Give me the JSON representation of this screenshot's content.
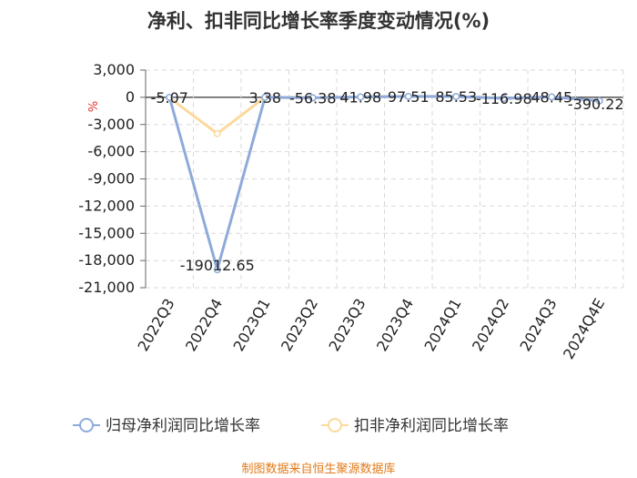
{
  "chart_data": {
    "type": "line",
    "title": "净利、扣非同比增长率季度变动情况(%)",
    "ylabel": "%",
    "x": [
      "2022Q3",
      "2022Q4",
      "2023Q1",
      "2023Q2",
      "2023Q3",
      "2023Q4",
      "2024Q1",
      "2024Q2",
      "2024Q3",
      "2024Q4E"
    ],
    "ylim": [
      -21000,
      3000
    ],
    "yticks": [
      3000,
      0,
      -3000,
      -6000,
      -9000,
      -12000,
      -15000,
      -18000,
      -21000
    ],
    "ytick_labels": [
      "3,000",
      "0",
      "-3,000",
      "-6,000",
      "-9,000",
      "-12,000",
      "-15,000",
      "-18,000",
      "-21,000"
    ],
    "series": [
      {
        "name": "归母净利润同比增长率",
        "color": "#8eaadb",
        "values": [
          -5.07,
          -19012.65,
          3.38,
          -56.38,
          41.98,
          97.51,
          85.53,
          -116.98,
          48.45,
          -390.22
        ],
        "labels": [
          "-5.07",
          "-19012.65",
          "3.38",
          "-56.38",
          "41.98",
          "97.51",
          "85.53",
          "-116.98",
          "48.45",
          "-390.22"
        ]
      },
      {
        "name": "扣非净利润同比增长率",
        "color": "#fcd99c",
        "values": [
          -50,
          -4000,
          3,
          -60,
          40,
          95,
          85,
          -120,
          45,
          -390
        ]
      }
    ],
    "grid": "y",
    "legend_position": "bottom"
  },
  "footer": {
    "source": "制图数据来自恒生聚源数据库"
  }
}
